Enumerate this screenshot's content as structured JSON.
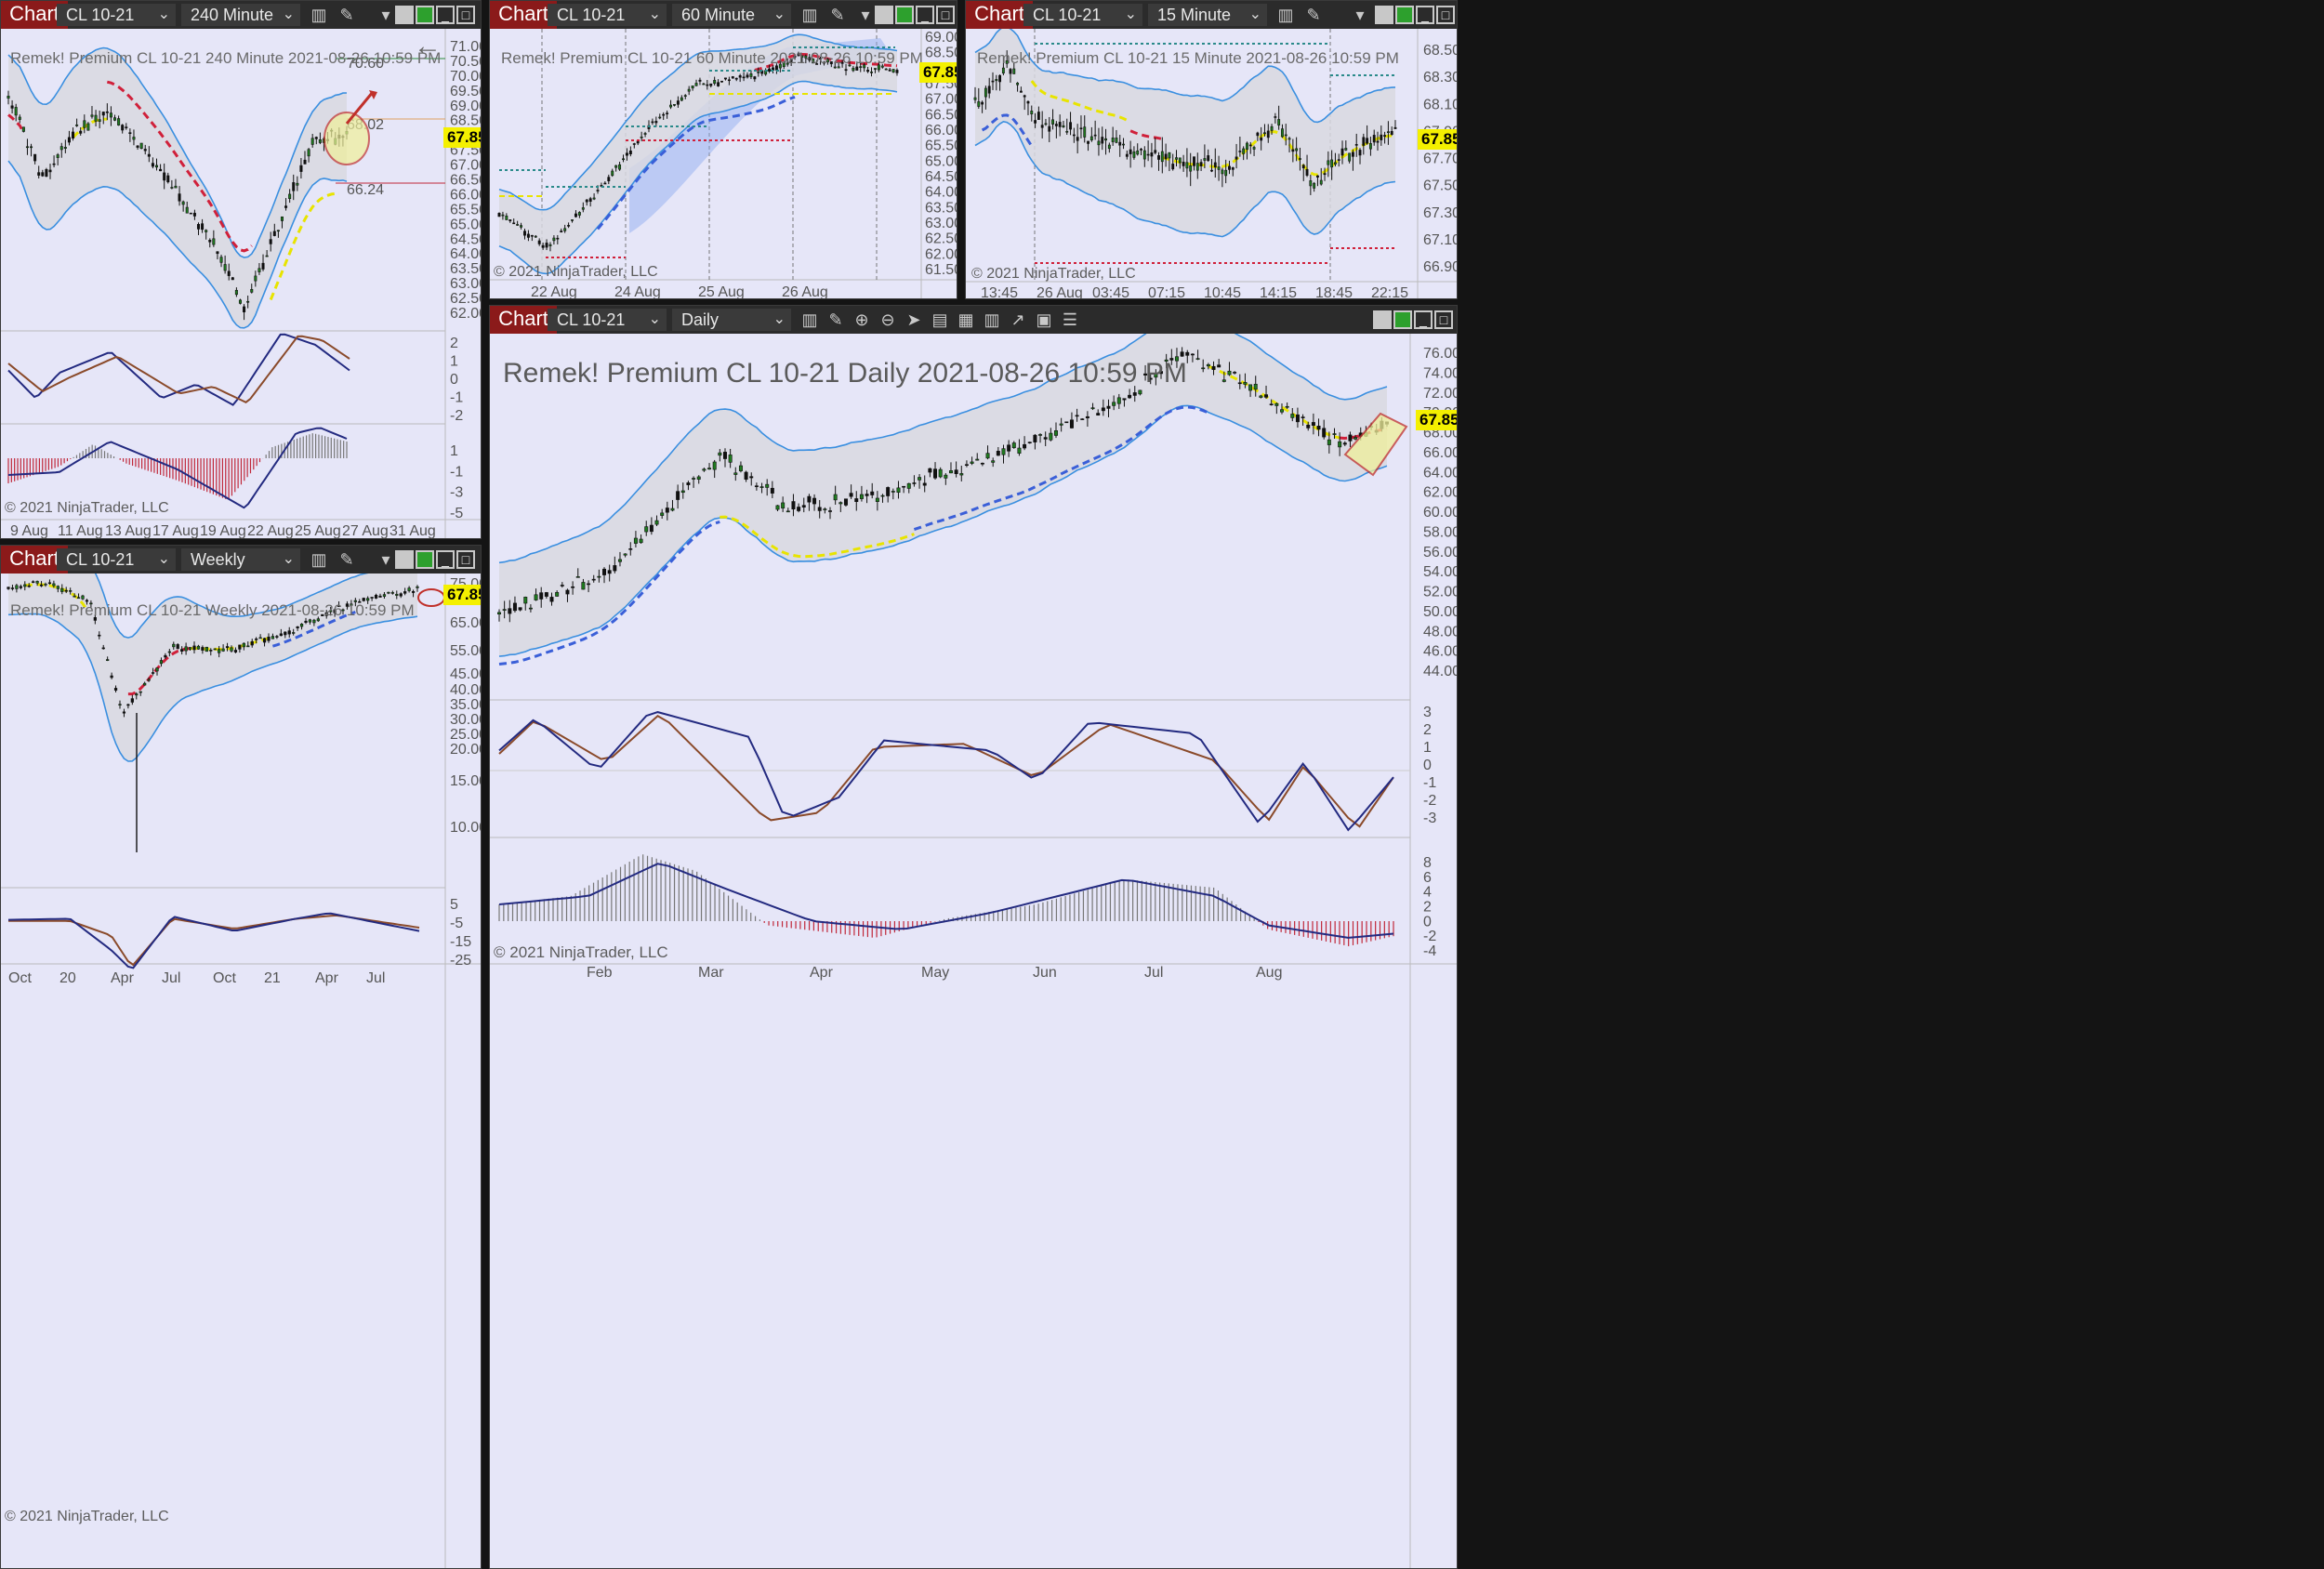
{
  "common": {
    "chart_tab": "Chart",
    "instrument": "CL 10-21",
    "copyright": "© 2021 NinjaTrader, LLC",
    "last_price": "67.85",
    "colors": {
      "accent_red": "#8b1a1a",
      "price_badge": "#f4f000",
      "band_blue": "#3a8fe0",
      "dash_red": "#d0203a",
      "dash_blue": "#3a5fd8"
    }
  },
  "w240": {
    "interval": "240 Minute",
    "title": "Remek!  Premium  CL 10-21  240 Minute  2021-08-26 10:59 PM",
    "prices": [
      "71.00",
      "70.50",
      "70.00",
      "69.50",
      "69.00",
      "68.50",
      "68.00",
      "67.50",
      "67.00",
      "66.50",
      "66.00",
      "65.50",
      "65.00",
      "64.50",
      "64.00",
      "63.50",
      "63.00",
      "62.50",
      "62.00"
    ],
    "level_top": "70.60",
    "level_mid": "68.02",
    "level_low": "66.24",
    "osc1": [
      "2",
      "1",
      "0",
      "-1",
      "-2"
    ],
    "osc2": [
      "1",
      "-1",
      "-3",
      "-5"
    ],
    "dates": [
      "9 Aug",
      "11 Aug",
      "13 Aug",
      "17 Aug",
      "19 Aug",
      "22 Aug",
      "25 Aug",
      "27 Aug",
      "31 Aug"
    ]
  },
  "w60": {
    "interval": "60 Minute",
    "title": "Remek!  Premium  CL 10-21  60 Minute  2021-08-26 10:59 PM",
    "prices": [
      "69.00",
      "68.50",
      "68.00",
      "67.50",
      "67.00",
      "66.50",
      "66.00",
      "65.50",
      "65.00",
      "64.50",
      "64.00",
      "63.50",
      "63.00",
      "62.50",
      "62.00",
      "61.50"
    ],
    "dates": [
      "22 Aug",
      "24 Aug",
      "25 Aug",
      "26 Aug"
    ]
  },
  "w15": {
    "interval": "15 Minute",
    "title": "Remek!  Premium  CL 10-21  15 Minute  2021-08-26 10:59 PM",
    "prices": [
      "68.50",
      "68.30",
      "68.10",
      "67.90",
      "67.70",
      "67.50",
      "67.30",
      "67.10",
      "66.90"
    ],
    "times": [
      "13:45",
      "26 Aug",
      "03:45",
      "07:15",
      "10:45",
      "14:15",
      "18:45",
      "22:15"
    ]
  },
  "wW": {
    "interval": "Weekly",
    "title": "Remek!  Premium  CL 10-21  Weekly  2021-08-26 10:59 PM",
    "prices": [
      "75.00",
      "65.00",
      "55.00",
      "45.00",
      "40.00",
      "35.00",
      "30.00",
      "25.00",
      "20.00",
      "15.00",
      "10.00"
    ],
    "osc": [
      "5",
      "-5",
      "-15",
      "-25"
    ],
    "dates": [
      "Oct",
      "20",
      "Apr",
      "Jul",
      "Oct",
      "21",
      "Apr",
      "Jul"
    ]
  },
  "wD": {
    "interval": "Daily",
    "title": "Remek!  Premium  CL 10-21  Daily  2021-08-26 10:59 PM",
    "prices": [
      "76.00",
      "74.00",
      "72.00",
      "70.00",
      "68.00",
      "66.00",
      "64.00",
      "62.00",
      "60.00",
      "58.00",
      "56.00",
      "54.00",
      "52.00",
      "50.00",
      "48.00",
      "46.00",
      "44.00"
    ],
    "osc1": [
      "3",
      "2",
      "1",
      "0",
      "-1",
      "-2",
      "-3"
    ],
    "osc2": [
      "8",
      "6",
      "4",
      "2",
      "0",
      "-2",
      "-4"
    ],
    "months": [
      "Feb",
      "Mar",
      "Apr",
      "May",
      "Jun",
      "Jul",
      "Aug"
    ]
  }
}
